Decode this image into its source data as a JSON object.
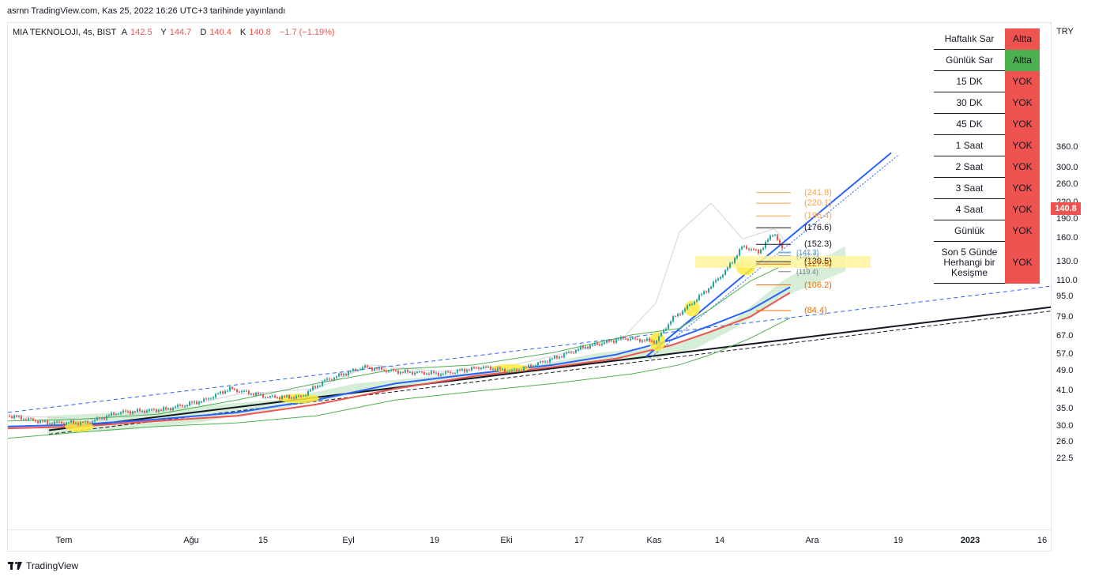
{
  "header": {
    "text": "asrnn TradingView.com, Kas 25, 2022 16:26 UTC+3 tarihinde yayınlandı"
  },
  "legend": {
    "symbol": "MIA TEKNOLOJI, 4s, BIST",
    "open_label": "A",
    "open": "142.5",
    "high_label": "Y",
    "high": "144.7",
    "low_label": "D",
    "low": "140.4",
    "close_label": "K",
    "close": "140.8",
    "change": "−1.7 (−1.19%)"
  },
  "price_axis": {
    "currency": "TRY",
    "ticks": [
      "360.0",
      "300.0",
      "260.0",
      "220.0",
      "190.0",
      "160.0",
      "130.0",
      "110.0",
      "95.0",
      "79.0",
      "67.0",
      "57.0",
      "49.0",
      "41.0",
      "35.0",
      "30.0",
      "26.0",
      "22.5"
    ],
    "last_price": "140.8",
    "last_price_color": "#ef5350"
  },
  "time_axis": {
    "labels": [
      "Tem",
      "Ağu",
      "15",
      "Eyl",
      "19",
      "Eki",
      "17",
      "Kas",
      "14",
      "Ara",
      "19",
      "2023",
      "16"
    ]
  },
  "fib_levels": [
    {
      "label": "(241.8)",
      "value": 241.8,
      "color": "#f7a54a"
    },
    {
      "label": "(220.1)",
      "value": 220.1,
      "color": "#f7a54a"
    },
    {
      "label": "(196.4)",
      "value": 196.4,
      "color": "#f7a54a"
    },
    {
      "label": "(176.6)",
      "value": 176.6,
      "color": "#131722"
    },
    {
      "label": "(152.3)",
      "value": 152.3,
      "color": "#131722"
    },
    {
      "label": "(142.3)",
      "value": 142.3,
      "color": "#7fb3d5"
    },
    {
      "label": "(141.3)",
      "value": 141.3,
      "color": "#7fb3d5"
    },
    {
      "label": "(137.7)",
      "value": 137.7,
      "color": "#7fb3d5"
    },
    {
      "label": "(130.5)",
      "value": 130.5,
      "color": "#131722"
    },
    {
      "label": "(127.8)",
      "value": 127.8,
      "color": "#ef6c00"
    },
    {
      "label": "(119.4)",
      "value": 119.4,
      "color": "#787b86"
    },
    {
      "label": "(106.2)",
      "value": 106.2,
      "color": "#ef6c00"
    },
    {
      "label": "(84.4)",
      "value": 84.4,
      "color": "#ef6c00"
    }
  ],
  "status_table": [
    {
      "name": "Haftalık Sar",
      "value": "Altta",
      "color": "#ef5350"
    },
    {
      "name": "Günlük Sar",
      "value": "Altta",
      "color": "#4caf50"
    },
    {
      "name": "15 DK",
      "value": "YOK",
      "color": "#ef5350"
    },
    {
      "name": "30 DK",
      "value": "YOK",
      "color": "#ef5350"
    },
    {
      "name": "45 DK",
      "value": "YOK",
      "color": "#ef5350"
    },
    {
      "name": "1 Saat",
      "value": "YOK",
      "color": "#ef5350"
    },
    {
      "name": "2 Saat",
      "value": "YOK",
      "color": "#ef5350"
    },
    {
      "name": "3 Saat",
      "value": "YOK",
      "color": "#ef5350"
    },
    {
      "name": "4 Saat",
      "value": "YOK",
      "color": "#ef5350"
    },
    {
      "name": "Günlük",
      "value": "YOK",
      "color": "#ef5350"
    },
    {
      "name": "Son 5 Günde Herhangi bir Kesişme",
      "value": "YOK",
      "color": "#ef5350"
    }
  ],
  "footer": {
    "brand": "TradingView"
  },
  "colors": {
    "up": "#26a69a",
    "down": "#ef5350",
    "ema_fast": "#2962ff",
    "ema_slow": "#ef5350",
    "band": "#4caf50",
    "trend": "#131722",
    "channel": "#2962ff",
    "highlight": "#ffeb3b",
    "cloud": "#a5d6a7"
  },
  "chart_data": {
    "type": "candlestick",
    "symbol": "MIA TEKNOLOJI",
    "interval": "4s",
    "exchange": "BIST",
    "y_scale": "log",
    "ylim": [
      20.5,
      420
    ],
    "currency": "TRY",
    "x_labels": [
      "Tem",
      "Ağu",
      "15",
      "Eyl",
      "19",
      "Eki",
      "17",
      "Kas",
      "14",
      "Ara",
      "19",
      "2023",
      "16"
    ],
    "approx_close_by_label": [
      {
        "label": "Tem",
        "close": 31
      },
      {
        "label": "Ağu",
        "close": 36
      },
      {
        "label": "15",
        "close": 42
      },
      {
        "label": "Eyl",
        "close": 49
      },
      {
        "label": "19",
        "close": 49
      },
      {
        "label": "Eki",
        "close": 50
      },
      {
        "label": "17",
        "close": 63
      },
      {
        "label": "Kas",
        "close": 64
      },
      {
        "label": "14",
        "close": 120
      }
    ],
    "last": {
      "open": 142.5,
      "high": 144.7,
      "low": 140.4,
      "close": 140.8,
      "change": -1.7,
      "change_pct": -1.19
    },
    "recent_high": 176.6
  }
}
